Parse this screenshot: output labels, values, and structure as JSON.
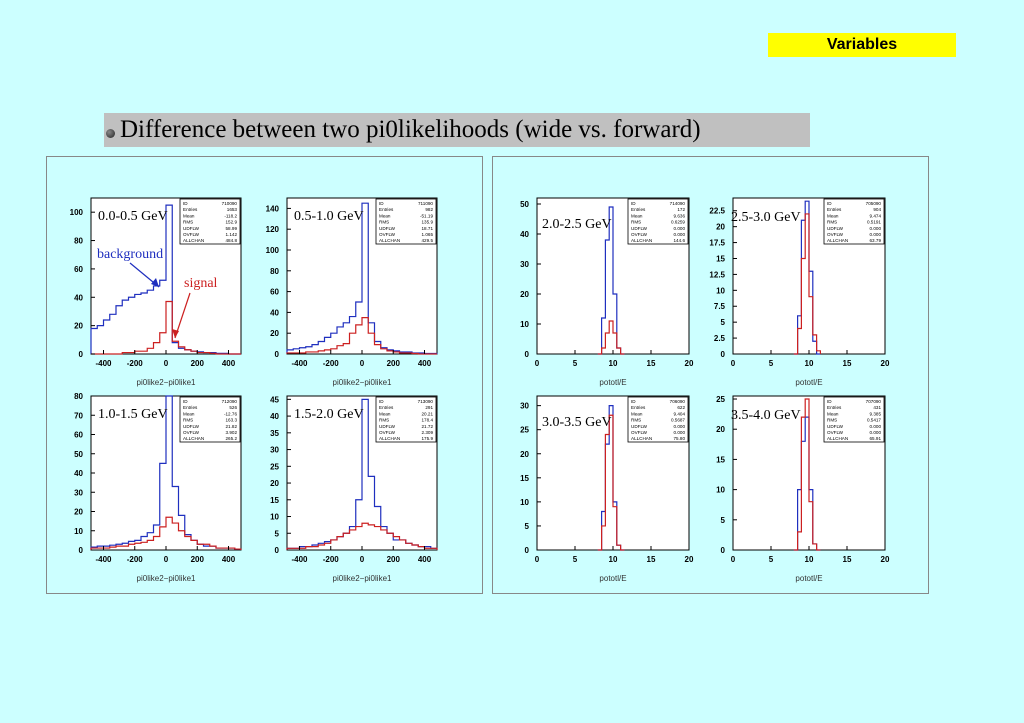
{
  "badge": "Variables",
  "heading": "Difference between two pi0likelihoods (wide vs. forward)",
  "annotations": {
    "background": "background",
    "signal": "signal"
  },
  "colors": {
    "background": "#1f2fbf",
    "signal": "#cc2020",
    "page": "#ccffff",
    "badge": "#ffff00"
  },
  "chart_data": [
    {
      "type": "histogram",
      "range_label": "0.0-0.5 GeV",
      "xlabel": "pi0like2−pi0like1",
      "xlim": [
        -480,
        480
      ],
      "ylim": [
        0,
        110
      ],
      "xticks": [
        "-400",
        "-200",
        "0",
        "200",
        "400"
      ],
      "yticks": [
        "0",
        "20",
        "40",
        "60",
        "80",
        "100"
      ],
      "stats": [
        [
          "ID",
          "710090"
        ],
        [
          "Entries",
          "1653"
        ],
        [
          "Mean",
          "-118.2"
        ],
        [
          "RMS",
          "152.9"
        ],
        [
          "UDFLW",
          "58.99"
        ],
        [
          "OVFLW",
          "1.142"
        ],
        [
          "ALLCHAN",
          "484.8"
        ]
      ],
      "x": [
        -480,
        -440,
        -400,
        -360,
        -320,
        -280,
        -240,
        -200,
        -160,
        -120,
        -80,
        -40,
        0,
        40,
        80,
        120,
        160,
        200,
        240,
        280,
        320,
        360,
        400,
        440
      ],
      "series": [
        {
          "name": "background",
          "values": [
            18,
            20,
            24,
            28,
            34,
            38,
            40,
            42,
            43,
            45,
            48,
            52,
            105,
            8,
            4,
            3,
            2,
            1.5,
            1,
            1,
            0.5,
            0.5,
            0,
            0
          ]
        },
        {
          "name": "signal",
          "values": [
            0,
            0,
            0,
            0,
            0,
            1,
            1,
            2,
            2,
            4,
            8,
            15,
            37,
            9,
            5,
            3,
            2,
            1,
            1,
            0.5,
            0,
            0,
            0,
            0
          ]
        }
      ]
    },
    {
      "type": "histogram",
      "range_label": "0.5-1.0 GeV",
      "xlabel": "pi0like2−pi0like1",
      "xlim": [
        -480,
        480
      ],
      "ylim": [
        0,
        150
      ],
      "xticks": [
        "-400",
        "-200",
        "0",
        "200",
        "400"
      ],
      "yticks": [
        "0",
        "20",
        "40",
        "60",
        "80",
        "100",
        "120",
        "140"
      ],
      "stats": [
        [
          "ID",
          "711090"
        ],
        [
          "Entries",
          "982"
        ],
        [
          "Mean",
          "-51.19"
        ],
        [
          "RMS",
          "135.9"
        ],
        [
          "UDFLW",
          "18.71"
        ],
        [
          "OVFLW",
          "1.065"
        ],
        [
          "ALLCHAN",
          "429.5"
        ]
      ],
      "x": [
        -480,
        -440,
        -400,
        -360,
        -320,
        -280,
        -240,
        -200,
        -160,
        -120,
        -80,
        -40,
        0,
        40,
        80,
        120,
        160,
        200,
        240,
        280,
        320,
        360,
        400,
        440
      ],
      "series": [
        {
          "name": "",
          "values": [
            4,
            5,
            6,
            7,
            9,
            12,
            16,
            20,
            26,
            30,
            36,
            50,
            145,
            30,
            12,
            6,
            4,
            3,
            2,
            2,
            1,
            1,
            0.5,
            0.5
          ]
        },
        {
          "name": "",
          "values": [
            1,
            1,
            1,
            2,
            2,
            3,
            4,
            5,
            8,
            10,
            20,
            28,
            35,
            20,
            9,
            5,
            3,
            2,
            1,
            1,
            0.5,
            0,
            0,
            0
          ]
        }
      ]
    },
    {
      "type": "histogram",
      "range_label": "1.0-1.5 GeV",
      "xlabel": "pi0like2−pi0like1",
      "xlim": [
        -480,
        480
      ],
      "ylim": [
        0,
        80
      ],
      "xticks": [
        "-400",
        "-200",
        "0",
        "200",
        "400"
      ],
      "yticks": [
        "0",
        "10",
        "20",
        "30",
        "40",
        "50",
        "60",
        "70",
        "80"
      ],
      "stats": [
        [
          "ID",
          "712090"
        ],
        [
          "Entries",
          "526"
        ],
        [
          "Mean",
          "-12.76"
        ],
        [
          "RMS",
          "163.3"
        ],
        [
          "UDFLW",
          "21.82"
        ],
        [
          "OVFLW",
          "3.902"
        ],
        [
          "ALLCHAN",
          "265.2"
        ]
      ],
      "x": [
        -480,
        -440,
        -400,
        -360,
        -320,
        -280,
        -240,
        -200,
        -160,
        -120,
        -80,
        -40,
        0,
        40,
        80,
        120,
        160,
        200,
        240,
        280,
        320,
        360,
        400,
        440
      ],
      "series": [
        {
          "name": "",
          "values": [
            1.5,
            2,
            2,
            2.5,
            3,
            3.5,
            4.5,
            5,
            7,
            9,
            13,
            45,
            80,
            33,
            18,
            8,
            5,
            3,
            2,
            2,
            1,
            1,
            1,
            0.5
          ]
        },
        {
          "name": "",
          "values": [
            1,
            1,
            1,
            1.5,
            2,
            2,
            3,
            3.5,
            4,
            5,
            7,
            12,
            17,
            14,
            10,
            7,
            5,
            3,
            3,
            2,
            1,
            1,
            1,
            0.5
          ]
        }
      ]
    },
    {
      "type": "histogram",
      "range_label": "1.5-2.0 GeV",
      "xlabel": "pi0like2−pi0like1",
      "xlim": [
        -480,
        480
      ],
      "ylim": [
        0,
        46
      ],
      "xticks": [
        "-400",
        "-200",
        "0",
        "200",
        "400"
      ],
      "yticks": [
        "0",
        "5",
        "10",
        "15",
        "20",
        "25",
        "30",
        "35",
        "40",
        "45"
      ],
      "stats": [
        [
          "ID",
          "713090"
        ],
        [
          "Entries",
          "291"
        ],
        [
          "Mean",
          "20.21"
        ],
        [
          "RMS",
          "178.4"
        ],
        [
          "UDFLW",
          "21.72"
        ],
        [
          "OVFLW",
          "2.309"
        ],
        [
          "ALLCHAN",
          "175.9"
        ]
      ],
      "x": [
        -480,
        -440,
        -400,
        -360,
        -320,
        -280,
        -240,
        -200,
        -160,
        -120,
        -80,
        -40,
        0,
        40,
        80,
        120,
        160,
        200,
        240,
        280,
        320,
        360,
        400,
        440
      ],
      "series": [
        {
          "name": "",
          "values": [
            0.5,
            0.5,
            1,
            1,
            1.5,
            2,
            2.5,
            3,
            4,
            5,
            7,
            15,
            45,
            22,
            13,
            7,
            5,
            3,
            3,
            2,
            1.5,
            1,
            1,
            0.5
          ]
        },
        {
          "name": "",
          "values": [
            0.5,
            0.5,
            0.5,
            1,
            1,
            1.5,
            2,
            3,
            4,
            5,
            6,
            7,
            8,
            7.5,
            7,
            6,
            5,
            4,
            3,
            2,
            1.5,
            1,
            0.5,
            0.5
          ]
        }
      ]
    },
    {
      "type": "histogram",
      "range_label": "2.0-2.5 GeV",
      "xlabel": "pototl/E",
      "xlim": [
        0,
        20
      ],
      "ylim": [
        0,
        52
      ],
      "xticks": [
        "0",
        "5",
        "10",
        "15",
        "20"
      ],
      "yticks": [
        "0",
        "10",
        "20",
        "30",
        "40",
        "50"
      ],
      "stats": [
        [
          "ID",
          "714090"
        ],
        [
          "Entries",
          "172"
        ],
        [
          "Mean",
          "9.636"
        ],
        [
          "RMS",
          "0.6259"
        ],
        [
          "UDFLW",
          "0.000"
        ],
        [
          "OVFLW",
          "0.000"
        ],
        [
          "ALLCHAN",
          "144.6"
        ]
      ],
      "x": [
        8,
        8.5,
        9,
        9.5,
        10,
        10.5,
        11
      ],
      "series": [
        {
          "name": "",
          "values": [
            0,
            12,
            38,
            49,
            20,
            2,
            0
          ]
        },
        {
          "name": "",
          "values": [
            0,
            2,
            7,
            11,
            7,
            2,
            0
          ]
        }
      ]
    },
    {
      "type": "histogram",
      "range_label": "2.5-3.0 GeV",
      "xlabel": "pototl/E",
      "xlim": [
        0,
        20
      ],
      "ylim": [
        0,
        24.5
      ],
      "xticks": [
        "0",
        "5",
        "10",
        "15",
        "20"
      ],
      "yticks": [
        "0",
        "2.5",
        "5",
        "7.5",
        "10",
        "12.5",
        "15",
        "17.5",
        "20",
        "22.5"
      ],
      "stats": [
        [
          "ID",
          "705090"
        ],
        [
          "Entries",
          "904"
        ],
        [
          "Mean",
          "9.474"
        ],
        [
          "RMS",
          "0.5191"
        ],
        [
          "UDFLW",
          "0.000"
        ],
        [
          "OVFLW",
          "0.000"
        ],
        [
          "ALLCHAN",
          "63.79"
        ]
      ],
      "x": [
        8,
        8.5,
        9,
        9.5,
        10,
        10.5,
        11
      ],
      "series": [
        {
          "name": "",
          "values": [
            0,
            6,
            21,
            24,
            13,
            2,
            0
          ]
        },
        {
          "name": "",
          "values": [
            0,
            4,
            15,
            22,
            9,
            3,
            0.5
          ]
        }
      ]
    },
    {
      "type": "histogram",
      "range_label": "3.0-3.5 GeV",
      "xlabel": "pototl/E",
      "xlim": [
        0,
        20
      ],
      "ylim": [
        0,
        32
      ],
      "xticks": [
        "0",
        "5",
        "10",
        "15",
        "20"
      ],
      "yticks": [
        "0",
        "5",
        "10",
        "15",
        "20",
        "25",
        "30"
      ],
      "stats": [
        [
          "ID",
          "706090"
        ],
        [
          "Entries",
          "622"
        ],
        [
          "Mean",
          "9.404"
        ],
        [
          "RMS",
          "0.5687"
        ],
        [
          "UDFLW",
          "0.000"
        ],
        [
          "OVFLW",
          "0.000"
        ],
        [
          "ALLCHAN",
          "75.80"
        ]
      ],
      "x": [
        8,
        8.5,
        9,
        9.5,
        10,
        10.5,
        11
      ],
      "series": [
        {
          "name": "",
          "values": [
            0,
            8,
            22,
            30,
            10,
            1,
            0
          ]
        },
        {
          "name": "",
          "values": [
            0,
            5,
            24,
            28,
            9,
            1,
            0
          ]
        }
      ]
    },
    {
      "type": "histogram",
      "range_label": "3.5-4.0 GeV",
      "xlabel": "pototl/E",
      "xlim": [
        0,
        20
      ],
      "ylim": [
        0,
        25.5
      ],
      "xticks": [
        "0",
        "5",
        "10",
        "15",
        "20"
      ],
      "yticks": [
        "0",
        "5",
        "10",
        "15",
        "20",
        "25"
      ],
      "stats": [
        [
          "ID",
          "707090"
        ],
        [
          "Entries",
          "431"
        ],
        [
          "Mean",
          "9.385"
        ],
        [
          "RMS",
          "0.5417"
        ],
        [
          "UDFLW",
          "0.000"
        ],
        [
          "OVFLW",
          "0.000"
        ],
        [
          "ALLCHAN",
          "65.91"
        ]
      ],
      "x": [
        8,
        8.5,
        9,
        9.5,
        10,
        10.5,
        11
      ],
      "series": [
        {
          "name": "",
          "values": [
            0,
            10,
            18,
            22,
            10,
            1,
            0
          ]
        },
        {
          "name": "",
          "values": [
            0,
            3,
            22,
            25,
            8,
            1,
            0
          ]
        }
      ]
    }
  ]
}
